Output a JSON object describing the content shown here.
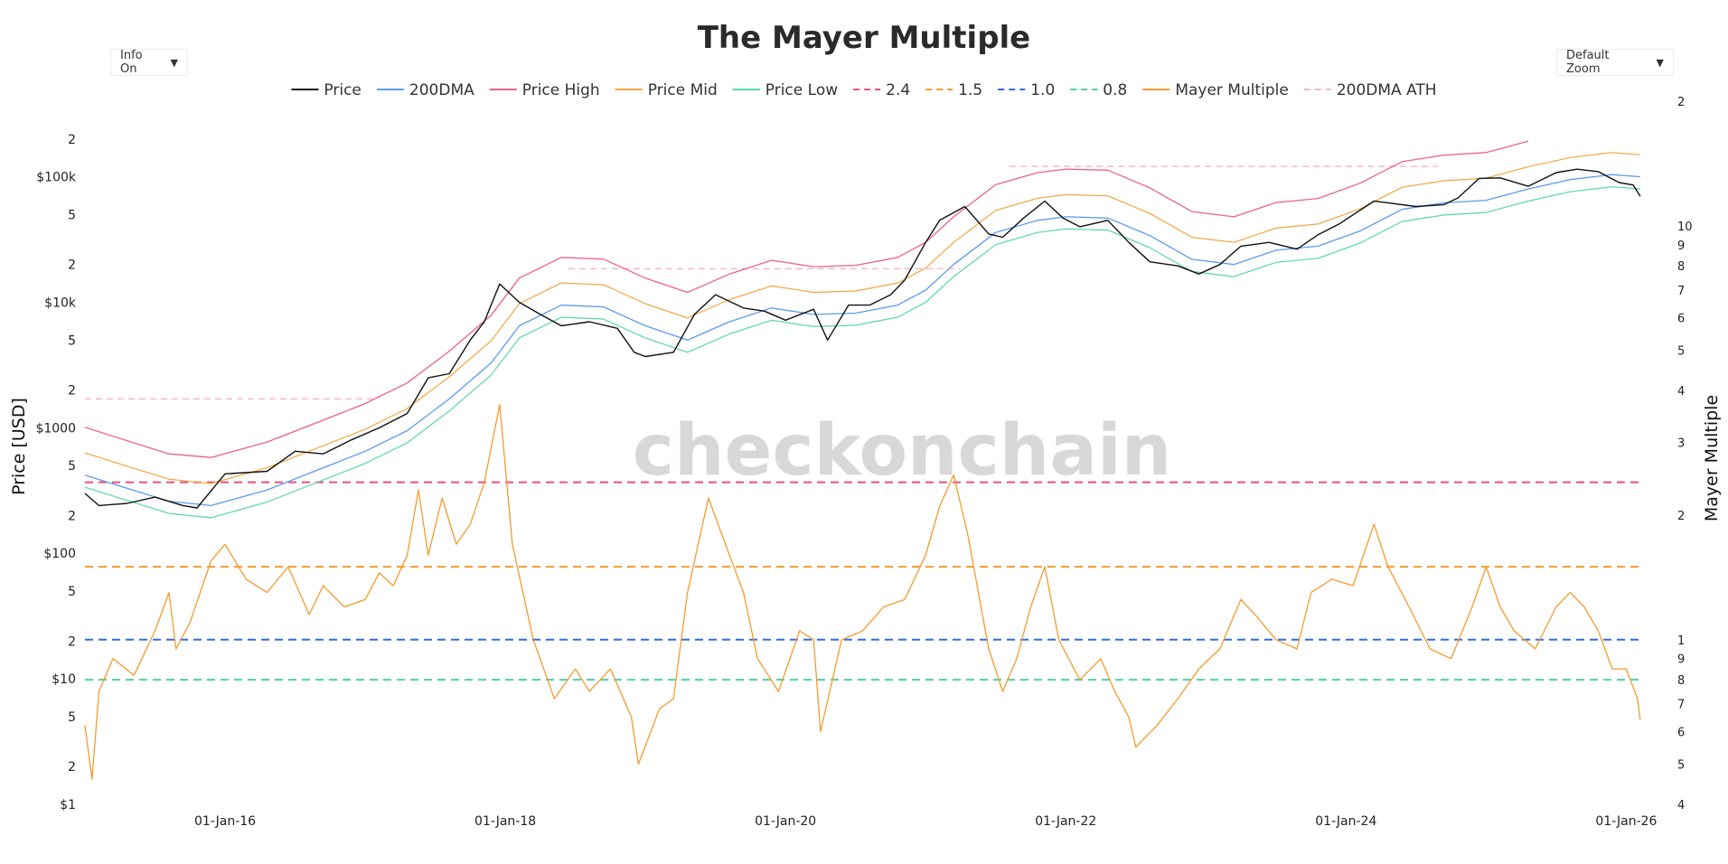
{
  "header": {
    "title": "The Mayer Multiple",
    "info_dropdown": "Info On",
    "zoom_dropdown": "Default Zoom",
    "dropdown_arrow": "▼",
    "watermark": "checkonchain"
  },
  "colors": {
    "price": "#111111",
    "dma200": "#5b9bf0",
    "price_high": "#ef5f8f",
    "price_mid": "#f3a53e",
    "price_low": "#58d6a8",
    "band_24": "#ee4e7a",
    "band_15": "#f39b2f",
    "band_10": "#2f6de6",
    "band_08": "#4fd1a1",
    "mayer": "#f39b2f",
    "dma_ath": "#f7b7c8"
  },
  "chart_data": {
    "type": "line",
    "title": "The Mayer Multiple",
    "x_ticks": [
      "01-Jan-16",
      "01-Jan-18",
      "01-Jan-20",
      "01-Jan-22",
      "01-Jan-24",
      "01-Jan-26"
    ],
    "x_tick_years": [
      2016,
      2018,
      2020,
      2022,
      2024,
      2026
    ],
    "x_range": [
      2015.0,
      2026.12
    ],
    "y_left": {
      "label": "Price [USD]",
      "scale": "log",
      "range": [
        1,
        400000
      ],
      "ticks": [
        {
          "v": 1,
          "t": "$1"
        },
        {
          "v": 2,
          "t": "2"
        },
        {
          "v": 5,
          "t": "5"
        },
        {
          "v": 10,
          "t": "$10"
        },
        {
          "v": 20,
          "t": "2"
        },
        {
          "v": 50,
          "t": "5"
        },
        {
          "v": 100,
          "t": "$100"
        },
        {
          "v": 200,
          "t": "2"
        },
        {
          "v": 500,
          "t": "5"
        },
        {
          "v": 1000,
          "t": "$1000"
        },
        {
          "v": 2000,
          "t": "2"
        },
        {
          "v": 5000,
          "t": "5"
        },
        {
          "v": 10000,
          "t": "$10k"
        },
        {
          "v": 20000,
          "t": "2"
        },
        {
          "v": 50000,
          "t": "5"
        },
        {
          "v": 100000,
          "t": "$100k"
        },
        {
          "v": 200000,
          "t": "2"
        }
      ]
    },
    "y_right": {
      "label": "Mayer Multiple",
      "scale": "log",
      "range": [
        0.4,
        20
      ],
      "ticks": [
        {
          "v": 0.4,
          "t": "4"
        },
        {
          "v": 0.5,
          "t": "5"
        },
        {
          "v": 0.6,
          "t": "6"
        },
        {
          "v": 0.7,
          "t": "7"
        },
        {
          "v": 0.8,
          "t": "8"
        },
        {
          "v": 0.9,
          "t": "9"
        },
        {
          "v": 1,
          "t": "1"
        },
        {
          "v": 2,
          "t": "2"
        },
        {
          "v": 3,
          "t": "3"
        },
        {
          "v": 4,
          "t": "4"
        },
        {
          "v": 5,
          "t": "5"
        },
        {
          "v": 6,
          "t": "6"
        },
        {
          "v": 7,
          "t": "7"
        },
        {
          "v": 8,
          "t": "8"
        },
        {
          "v": 9,
          "t": "9"
        },
        {
          "v": 10,
          "t": "10"
        },
        {
          "v": 20,
          "t": "2"
        }
      ]
    },
    "legend": [
      {
        "key": "price",
        "label": "Price",
        "style": "solid"
      },
      {
        "key": "dma200",
        "label": "200DMA",
        "style": "solid"
      },
      {
        "key": "price_high",
        "label": "Price High",
        "style": "solid"
      },
      {
        "key": "price_mid",
        "label": "Price Mid",
        "style": "solid"
      },
      {
        "key": "price_low",
        "label": "Price Low",
        "style": "solid"
      },
      {
        "key": "band_24",
        "label": "2.4",
        "style": "dash"
      },
      {
        "key": "band_15",
        "label": "1.5",
        "style": "dash"
      },
      {
        "key": "band_10",
        "label": "1.0",
        "style": "dash"
      },
      {
        "key": "band_08",
        "label": "0.8",
        "style": "dash"
      },
      {
        "key": "mayer",
        "label": "Mayer Multiple",
        "style": "solid"
      },
      {
        "key": "dma_ath",
        "label": "200DMA ATH",
        "style": "dash"
      }
    ],
    "bands": [
      {
        "key": "band_24",
        "value": 2.4
      },
      {
        "key": "band_15",
        "value": 1.5
      },
      {
        "key": "band_10",
        "value": 1.0
      },
      {
        "key": "band_08",
        "value": 0.8
      }
    ],
    "dma_ath_segments": [
      {
        "x0": 2015.0,
        "x1": 2017.05,
        "value": 1700
      },
      {
        "x0": 2018.45,
        "x1": 2021.25,
        "value": 18500
      },
      {
        "x0": 2021.6,
        "x1": 2024.65,
        "value": 121000
      }
    ],
    "series": {
      "price": {
        "x": [
          2015.0,
          2015.1,
          2015.3,
          2015.5,
          2015.7,
          2015.8,
          2016.0,
          2016.3,
          2016.5,
          2016.7,
          2016.9,
          2017.1,
          2017.3,
          2017.45,
          2017.6,
          2017.75,
          2017.85,
          2017.96,
          2018.1,
          2018.25,
          2018.4,
          2018.6,
          2018.8,
          2018.92,
          2019.0,
          2019.2,
          2019.35,
          2019.5,
          2019.7,
          2019.85,
          2020.0,
          2020.2,
          2020.3,
          2020.45,
          2020.6,
          2020.75,
          2020.85,
          2021.0,
          2021.1,
          2021.28,
          2021.45,
          2021.55,
          2021.7,
          2021.85,
          2021.98,
          2022.1,
          2022.3,
          2022.45,
          2022.6,
          2022.8,
          2022.95,
          2023.1,
          2023.25,
          2023.45,
          2023.65,
          2023.8,
          2023.95,
          2024.2,
          2024.5,
          2024.7,
          2024.8,
          2024.95,
          2025.1,
          2025.3,
          2025.5,
          2025.65,
          2025.8,
          2025.95,
          2026.05,
          2026.1
        ],
        "y": [
          300,
          240,
          250,
          280,
          240,
          230,
          430,
          450,
          650,
          620,
          800,
          1000,
          1300,
          2500,
          2700,
          5000,
          7000,
          14000,
          10000,
          8000,
          6500,
          7000,
          6200,
          4000,
          3700,
          4000,
          8000,
          11500,
          9000,
          8500,
          7200,
          8800,
          5000,
          9500,
          9500,
          11500,
          15000,
          30000,
          45000,
          58000,
          35000,
          33000,
          47000,
          64000,
          47000,
          40000,
          45000,
          30000,
          21000,
          19500,
          16800,
          20000,
          28000,
          30000,
          26500,
          34500,
          42000,
          64000,
          58000,
          60000,
          68000,
          97000,
          98000,
          84000,
          108000,
          115000,
          110000,
          90000,
          86000,
          70000
        ]
      },
      "dma200": {
        "x": [
          2015.0,
          2015.3,
          2015.6,
          2015.9,
          2016.3,
          2016.7,
          2017.0,
          2017.3,
          2017.6,
          2017.9,
          2018.1,
          2018.4,
          2018.7,
          2019.0,
          2019.3,
          2019.6,
          2019.9,
          2020.2,
          2020.5,
          2020.8,
          2021.0,
          2021.2,
          2021.5,
          2021.8,
          2022.0,
          2022.3,
          2022.6,
          2022.9,
          2023.2,
          2023.5,
          2023.8,
          2024.1,
          2024.4,
          2024.7,
          2025.0,
          2025.3,
          2025.6,
          2025.9,
          2026.1
        ],
        "y": [
          420,
          330,
          260,
          240,
          320,
          480,
          650,
          950,
          1700,
          3300,
          6500,
          9500,
          9200,
          6500,
          5000,
          7000,
          9000,
          8000,
          8200,
          9500,
          12500,
          20000,
          36000,
          45000,
          48000,
          47000,
          34000,
          22000,
          20000,
          26000,
          28000,
          37000,
          55000,
          62000,
          65000,
          80000,
          95000,
          104000,
          100000
        ]
      },
      "price_high": {
        "x": [
          2015.0,
          2015.3,
          2015.6,
          2015.9,
          2016.3,
          2016.7,
          2017.0,
          2017.3,
          2017.6,
          2017.9,
          2018.1,
          2018.4,
          2018.7,
          2019.0,
          2019.3,
          2019.6,
          2019.9,
          2020.2,
          2020.5,
          2020.8,
          2021.0,
          2021.2,
          2021.5,
          2021.8,
          2022.0,
          2022.3,
          2022.6,
          2022.9,
          2023.2,
          2023.5,
          2023.8,
          2024.1,
          2024.4,
          2024.7,
          2025.0,
          2025.3
        ],
        "y": [
          1010,
          790,
          620,
          580,
          770,
          1150,
          1560,
          2280,
          4080,
          7920,
          15600,
          22800,
          22100,
          15600,
          12000,
          16800,
          21600,
          19200,
          19700,
          22800,
          30000,
          48000,
          86400,
          108000,
          115200,
          112800,
          81600,
          52800,
          48000,
          62400,
          67200,
          88800,
          132000,
          148800,
          156000,
          192000
        ]
      },
      "price_mid": {
        "x": [
          2015.0,
          2015.3,
          2015.6,
          2015.9,
          2016.3,
          2016.7,
          2017.0,
          2017.3,
          2017.6,
          2017.9,
          2018.1,
          2018.4,
          2018.7,
          2019.0,
          2019.3,
          2019.6,
          2019.9,
          2020.2,
          2020.5,
          2020.8,
          2021.0,
          2021.2,
          2021.5,
          2021.8,
          2022.0,
          2022.3,
          2022.6,
          2022.9,
          2023.2,
          2023.5,
          2023.8,
          2024.1,
          2024.4,
          2024.7,
          2025.0,
          2025.3,
          2025.6,
          2025.9,
          2026.1
        ],
        "y": [
          630,
          495,
          390,
          360,
          480,
          720,
          975,
          1425,
          2550,
          4950,
          9750,
          14250,
          13800,
          9750,
          7500,
          10500,
          13500,
          12000,
          12300,
          14250,
          18750,
          30000,
          54000,
          67500,
          72000,
          70500,
          51000,
          33000,
          30000,
          39000,
          42000,
          55500,
          82500,
          93000,
          97500,
          120000,
          142500,
          156000,
          150000
        ]
      },
      "price_low": {
        "x": [
          2015.0,
          2015.3,
          2015.6,
          2015.9,
          2016.3,
          2016.7,
          2017.0,
          2017.3,
          2017.6,
          2017.9,
          2018.1,
          2018.4,
          2018.7,
          2019.0,
          2019.3,
          2019.6,
          2019.9,
          2020.2,
          2020.5,
          2020.8,
          2021.0,
          2021.2,
          2021.5,
          2021.8,
          2022.0,
          2022.3,
          2022.6,
          2022.9,
          2023.2,
          2023.5,
          2023.8,
          2024.1,
          2024.4,
          2024.7,
          2025.0,
          2025.3,
          2025.6,
          2025.9,
          2026.1
        ],
        "y": [
          336,
          264,
          208,
          192,
          256,
          384,
          520,
          760,
          1360,
          2640,
          5200,
          7600,
          7360,
          5200,
          4000,
          5600,
          7200,
          6400,
          6560,
          7600,
          10000,
          16000,
          28800,
          36000,
          38400,
          37600,
          27200,
          17600,
          16000,
          20800,
          22400,
          29600,
          44000,
          49600,
          52000,
          64000,
          76000,
          83200,
          80000
        ]
      },
      "mayer": {
        "x": [
          2015.0,
          2015.05,
          2015.1,
          2015.2,
          2015.35,
          2015.5,
          2015.6,
          2015.65,
          2015.75,
          2015.9,
          2016.0,
          2016.15,
          2016.3,
          2016.45,
          2016.6,
          2016.7,
          2016.85,
          2017.0,
          2017.1,
          2017.2,
          2017.3,
          2017.38,
          2017.45,
          2017.55,
          2017.65,
          2017.75,
          2017.85,
          2017.96,
          2018.05,
          2018.2,
          2018.35,
          2018.5,
          2018.6,
          2018.75,
          2018.9,
          2018.95,
          2019.1,
          2019.2,
          2019.3,
          2019.45,
          2019.6,
          2019.7,
          2019.8,
          2019.95,
          2020.1,
          2020.2,
          2020.25,
          2020.4,
          2020.55,
          2020.7,
          2020.85,
          2021.0,
          2021.1,
          2021.2,
          2021.3,
          2021.45,
          2021.55,
          2021.65,
          2021.75,
          2021.85,
          2021.95,
          2022.1,
          2022.25,
          2022.35,
          2022.45,
          2022.5,
          2022.65,
          2022.8,
          2022.95,
          2023.1,
          2023.25,
          2023.35,
          2023.5,
          2023.65,
          2023.75,
          2023.9,
          2024.05,
          2024.2,
          2024.3,
          2024.45,
          2024.6,
          2024.75,
          2024.9,
          2025.0,
          2025.1,
          2025.2,
          2025.35,
          2025.5,
          2025.6,
          2025.7,
          2025.8,
          2025.9,
          2026.0,
          2026.08,
          2026.1
        ],
        "y": [
          0.62,
          0.46,
          0.75,
          0.9,
          0.82,
          1.05,
          1.3,
          0.95,
          1.1,
          1.55,
          1.7,
          1.4,
          1.3,
          1.5,
          1.15,
          1.35,
          1.2,
          1.25,
          1.45,
          1.35,
          1.6,
          2.3,
          1.6,
          2.2,
          1.7,
          1.9,
          2.4,
          3.7,
          1.7,
          1.0,
          0.72,
          0.85,
          0.75,
          0.85,
          0.65,
          0.5,
          0.68,
          0.72,
          1.3,
          2.2,
          1.6,
          1.3,
          0.9,
          0.75,
          1.05,
          1.0,
          0.6,
          1.0,
          1.05,
          1.2,
          1.25,
          1.6,
          2.1,
          2.5,
          1.8,
          0.95,
          0.75,
          0.9,
          1.2,
          1.5,
          1.0,
          0.8,
          0.9,
          0.75,
          0.65,
          0.55,
          0.62,
          0.72,
          0.85,
          0.95,
          1.25,
          1.15,
          1.0,
          0.95,
          1.3,
          1.4,
          1.35,
          1.9,
          1.5,
          1.2,
          0.95,
          0.9,
          1.2,
          1.5,
          1.2,
          1.05,
          0.95,
          1.2,
          1.3,
          1.2,
          1.05,
          0.85,
          0.85,
          0.72,
          0.64
        ]
      }
    }
  },
  "axes": {
    "y_left_label": "Price [USD]",
    "y_right_label": "Mayer Multiple"
  }
}
